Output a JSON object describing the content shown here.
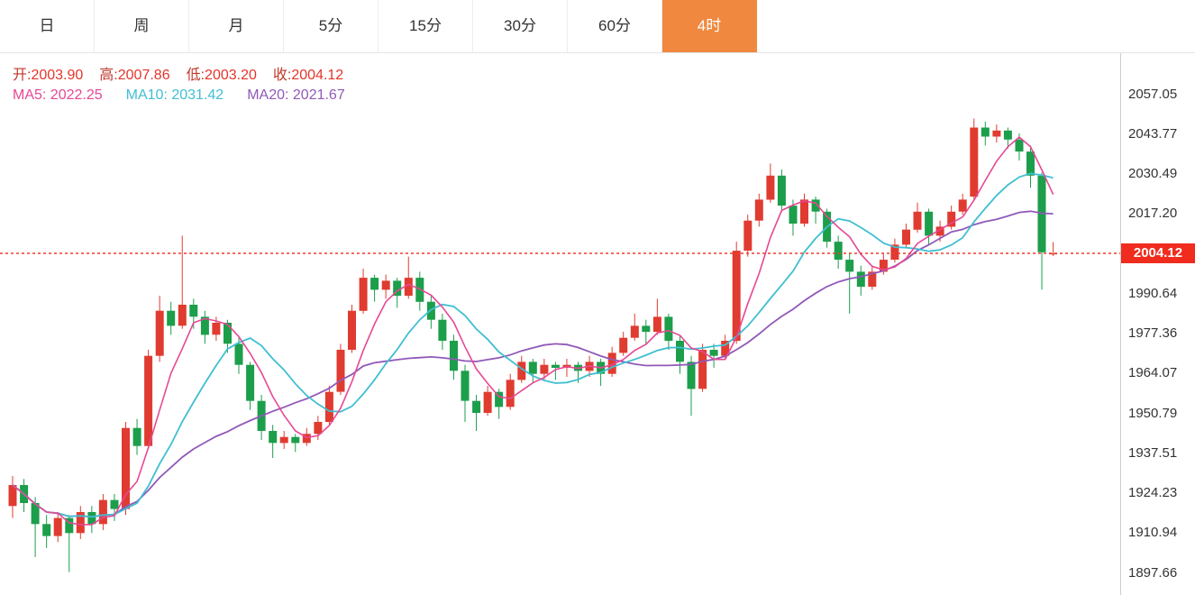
{
  "toolbar": {
    "tabs": [
      {
        "label": "日",
        "active": false
      },
      {
        "label": "周",
        "active": false
      },
      {
        "label": "月",
        "active": false
      },
      {
        "label": "5分",
        "active": false
      },
      {
        "label": "15分",
        "active": false
      },
      {
        "label": "30分",
        "active": false
      },
      {
        "label": "60分",
        "active": false
      },
      {
        "label": "4时",
        "active": true
      }
    ]
  },
  "ohlc": {
    "open_label": "开:",
    "open_value": "2003.90",
    "high_label": "高:",
    "high_value": "2007.86",
    "low_label": "低:",
    "low_value": "2003.20",
    "close_label": "收:",
    "close_value": "2004.12"
  },
  "ma": {
    "ma5_label": "MA5:",
    "ma5_value": "2022.25",
    "ma10_label": "MA10:",
    "ma10_value": "2031.42",
    "ma20_label": "MA20:",
    "ma20_value": "2021.67"
  },
  "colors": {
    "up": "#e03b30",
    "down": "#1c9e4b",
    "ma5": "#e74895",
    "ma10": "#3fbfd2",
    "ma20": "#9159b8",
    "accent": "#f0883f",
    "price_line": "#f03b2a",
    "price_tag_bg": "#f02c1e",
    "axis_line": "#cccccc",
    "axis_text": "#333333"
  },
  "chart_data": {
    "type": "candlestick",
    "timeframe": "4时",
    "title": "",
    "current_price": 2004.12,
    "current_price_label": "2004.12",
    "y_axis_labels": [
      "2057.05",
      "2043.77",
      "2030.49",
      "2017.20",
      "1990.64",
      "1977.36",
      "1964.07",
      "1950.79",
      "1937.51",
      "1924.23",
      "1910.94",
      "1897.66"
    ],
    "ohlc_columns": [
      "open",
      "high",
      "low",
      "close"
    ],
    "moving_averages": [
      {
        "name": "MA5",
        "period": 5,
        "last_value": 2022.25
      },
      {
        "name": "MA10",
        "period": 10,
        "last_value": 2031.42
      },
      {
        "name": "MA20",
        "period": 20,
        "last_value": 2021.67
      }
    ],
    "candles": [
      [
        1920,
        1930,
        1916,
        1927
      ],
      [
        1927,
        1929,
        1918,
        1921
      ],
      [
        1921,
        1923,
        1903,
        1914
      ],
      [
        1914,
        1917,
        1906,
        1910
      ],
      [
        1910,
        1918,
        1908,
        1916
      ],
      [
        1916,
        1917,
        1898,
        1911
      ],
      [
        1911,
        1920,
        1909,
        1918
      ],
      [
        1918,
        1920,
        1911,
        1914
      ],
      [
        1914,
        1924,
        1912,
        1922
      ],
      [
        1922,
        1924,
        1915,
        1919
      ],
      [
        1919,
        1948,
        1917,
        1946
      ],
      [
        1946,
        1949,
        1937,
        1940
      ],
      [
        1940,
        1972,
        1939,
        1970
      ],
      [
        1970,
        1990,
        1968,
        1985
      ],
      [
        1985,
        1988,
        1977,
        1980
      ],
      [
        1980,
        2010,
        1979,
        1987
      ],
      [
        1987,
        1989,
        1979,
        1983
      ],
      [
        1983,
        1985,
        1974,
        1977
      ],
      [
        1977,
        1983,
        1975,
        1981
      ],
      [
        1981,
        1982,
        1971,
        1974
      ],
      [
        1974,
        1976,
        1964,
        1967
      ],
      [
        1967,
        1968,
        1952,
        1955
      ],
      [
        1955,
        1957,
        1942,
        1945
      ],
      [
        1945,
        1947,
        1936,
        1941
      ],
      [
        1941,
        1945,
        1939,
        1943
      ],
      [
        1943,
        1944,
        1938,
        1941
      ],
      [
        1941,
        1946,
        1940,
        1944
      ],
      [
        1944,
        1950,
        1942,
        1948
      ],
      [
        1948,
        1960,
        1947,
        1958
      ],
      [
        1958,
        1974,
        1957,
        1972
      ],
      [
        1972,
        1987,
        1971,
        1985
      ],
      [
        1985,
        1999,
        1984,
        1996
      ],
      [
        1996,
        1997,
        1988,
        1992
      ],
      [
        1992,
        1997,
        1989,
        1995
      ],
      [
        1995,
        1996,
        1986,
        1990
      ],
      [
        1990,
        2003,
        1989,
        1996
      ],
      [
        1996,
        1998,
        1985,
        1988
      ],
      [
        1988,
        1990,
        1979,
        1982
      ],
      [
        1982,
        1984,
        1972,
        1975
      ],
      [
        1975,
        1977,
        1962,
        1965
      ],
      [
        1965,
        1967,
        1948,
        1955
      ],
      [
        1955,
        1957,
        1945,
        1951
      ],
      [
        1951,
        1960,
        1950,
        1958
      ],
      [
        1958,
        1959,
        1949,
        1953
      ],
      [
        1953,
        1964,
        1952,
        1962
      ],
      [
        1962,
        1970,
        1961,
        1968
      ],
      [
        1968,
        1969,
        1961,
        1964
      ],
      [
        1964,
        1969,
        1962,
        1967
      ],
      [
        1967,
        1968,
        1962,
        1966
      ],
      [
        1966,
        1969,
        1963,
        1967
      ],
      [
        1967,
        1968,
        1961,
        1965
      ],
      [
        1965,
        1970,
        1963,
        1968
      ],
      [
        1968,
        1969,
        1960,
        1964
      ],
      [
        1964,
        1973,
        1963,
        1971
      ],
      [
        1971,
        1978,
        1970,
        1976
      ],
      [
        1976,
        1984,
        1975,
        1980
      ],
      [
        1980,
        1982,
        1974,
        1978
      ],
      [
        1978,
        1989,
        1977,
        1983
      ],
      [
        1983,
        1984,
        1972,
        1975
      ],
      [
        1975,
        1977,
        1964,
        1968
      ],
      [
        1968,
        1970,
        1950,
        1959
      ],
      [
        1959,
        1974,
        1958,
        1972
      ],
      [
        1972,
        1974,
        1966,
        1970
      ],
      [
        1970,
        1977,
        1969,
        1975
      ],
      [
        1975,
        2008,
        1974,
        2005
      ],
      [
        2005,
        2017,
        2003,
        2015
      ],
      [
        2015,
        2024,
        2013,
        2022
      ],
      [
        2022,
        2034,
        2021,
        2030
      ],
      [
        2030,
        2032,
        2018,
        2020
      ],
      [
        2020,
        2022,
        2010,
        2014
      ],
      [
        2014,
        2024,
        2013,
        2022
      ],
      [
        2022,
        2023,
        2014,
        2018
      ],
      [
        2018,
        2019,
        2006,
        2008
      ],
      [
        2008,
        2010,
        1999,
        2002
      ],
      [
        2002,
        2004,
        1984,
        1998
      ],
      [
        1998,
        2000,
        1990,
        1993
      ],
      [
        1993,
        2000,
        1992,
        1998
      ],
      [
        1998,
        2004,
        1997,
        2002
      ],
      [
        2002,
        2009,
        2001,
        2007
      ],
      [
        2007,
        2014,
        2006,
        2012
      ],
      [
        2012,
        2021,
        2011,
        2018
      ],
      [
        2018,
        2019,
        2007,
        2010
      ],
      [
        2010,
        2015,
        2008,
        2013
      ],
      [
        2013,
        2020,
        2012,
        2018
      ],
      [
        2018,
        2024,
        2017,
        2022
      ],
      [
        2023,
        2049,
        2022,
        2046
      ],
      [
        2046,
        2048,
        2040,
        2043
      ],
      [
        2043,
        2047,
        2041,
        2045
      ],
      [
        2045,
        2046,
        2039,
        2042
      ],
      [
        2042,
        2044,
        2035,
        2038
      ],
      [
        2038,
        2040,
        2026,
        2030
      ],
      [
        2030,
        2031,
        1992,
        2004.5
      ],
      [
        2003.9,
        2007.86,
        2003.2,
        2004.12
      ]
    ]
  }
}
